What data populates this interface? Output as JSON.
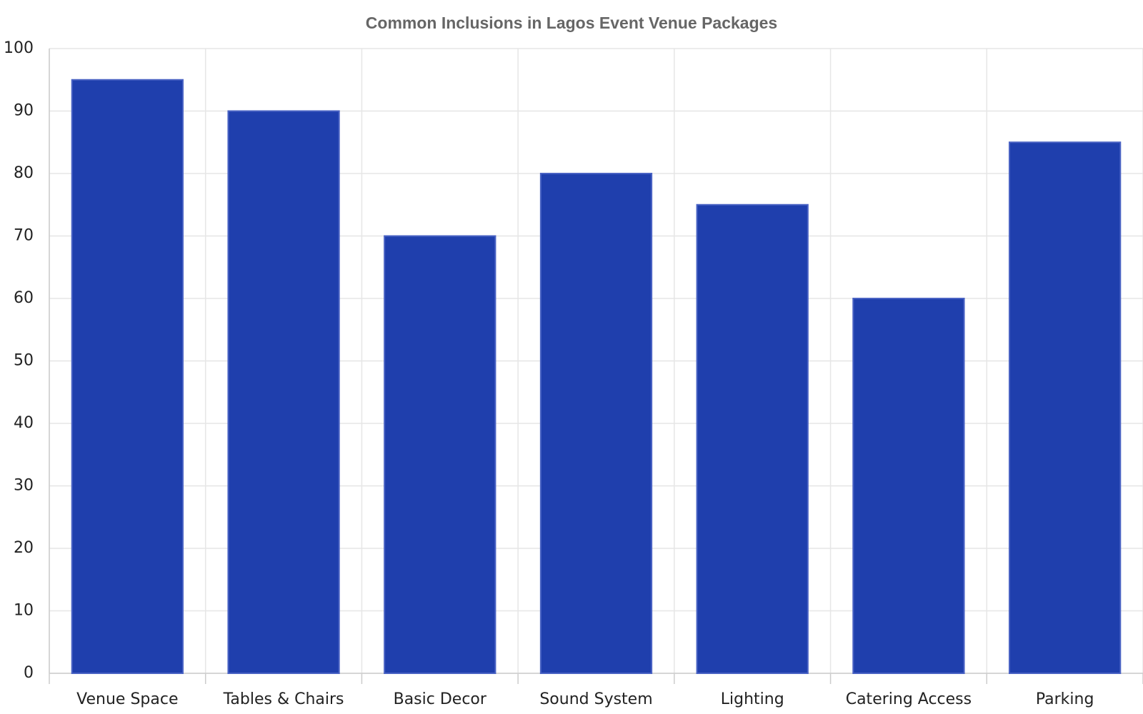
{
  "chart_data": {
    "type": "bar",
    "title": "Common Inclusions in Lagos Event Venue Packages",
    "categories": [
      "Venue Space",
      "Tables & Chairs",
      "Basic Decor",
      "Sound System",
      "Lighting",
      "Catering Access",
      "Parking"
    ],
    "values": [
      95,
      90,
      70,
      80,
      75,
      60,
      85
    ],
    "color": "#1f3fad",
    "ylim": [
      0,
      100
    ],
    "yticks": [
      0,
      10,
      20,
      30,
      40,
      50,
      60,
      70,
      80,
      90,
      100
    ],
    "grid": true
  }
}
